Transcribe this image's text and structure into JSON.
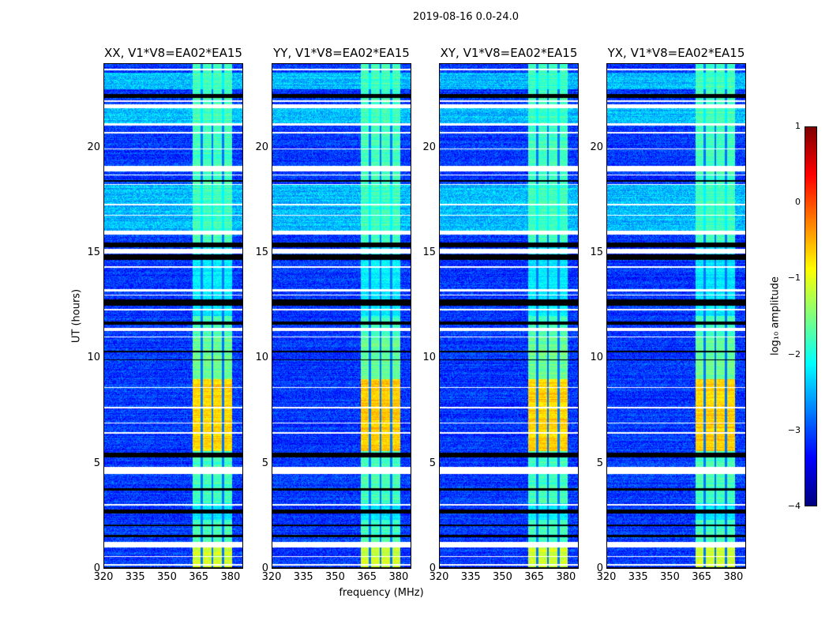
{
  "chart_data": {
    "type": "heatmap",
    "title": "2019-08-16 0.0-24.0",
    "xlabel": "frequency (MHz)",
    "ylabel": "UT (hours)",
    "xlim": [
      320,
      386
    ],
    "ylim": [
      0,
      24
    ],
    "xticks": [
      "320",
      "335",
      "350",
      "365",
      "380"
    ],
    "xtick_values": [
      320,
      335,
      350,
      365,
      380
    ],
    "yticks": [
      "0",
      "5",
      "10",
      "15",
      "20"
    ],
    "ytick_values": [
      0,
      5,
      10,
      15,
      20
    ],
    "panels": [
      {
        "title": "XX, V1*V8=EA02*EA15",
        "band_boost": 0.0
      },
      {
        "title": "YY, V1*V8=EA02*EA15",
        "band_boost": 0.1
      },
      {
        "title": "XY, V1*V8=EA02*EA15",
        "band_boost": 0.05
      },
      {
        "title": "YX, V1*V8=EA02*EA15",
        "band_boost": 0.05
      }
    ],
    "rfi_band_mhz": [
      362,
      381
    ],
    "flagged_hours_white": [
      [
        23.7,
        23.8
      ],
      [
        22.2,
        22.3
      ],
      [
        21.9,
        22.1
      ],
      [
        21.1,
        21.2
      ],
      [
        20.7,
        20.8
      ],
      [
        19.95,
        20.0
      ],
      [
        18.9,
        19.15
      ],
      [
        18.7,
        18.75
      ],
      [
        18.25,
        18.3
      ],
      [
        17.3,
        17.35
      ],
      [
        16.8,
        16.85
      ],
      [
        15.9,
        16.1
      ],
      [
        15.0,
        15.2
      ],
      [
        14.3,
        14.4
      ],
      [
        13.2,
        13.3
      ],
      [
        13.0,
        13.05
      ],
      [
        12.3,
        12.35
      ],
      [
        11.3,
        11.45
      ],
      [
        11.0,
        11.05
      ],
      [
        8.6,
        8.65
      ],
      [
        7.6,
        7.7
      ],
      [
        6.9,
        6.95
      ],
      [
        6.4,
        6.5
      ],
      [
        4.5,
        4.85
      ],
      [
        3.0,
        3.05
      ],
      [
        1.0,
        1.25
      ],
      [
        0.55,
        0.6
      ],
      [
        0.15,
        0.2
      ]
    ],
    "flagged_hours_black": [
      [
        22.4,
        22.6
      ],
      [
        18.4,
        18.5
      ],
      [
        15.3,
        15.5
      ],
      [
        14.7,
        14.95
      ],
      [
        12.5,
        12.8
      ],
      [
        11.6,
        11.75
      ],
      [
        10.3,
        10.35
      ],
      [
        9.9,
        9.95
      ],
      [
        5.3,
        5.5
      ],
      [
        3.7,
        3.8
      ],
      [
        2.6,
        2.8
      ],
      [
        2.0,
        2.1
      ],
      [
        1.5,
        1.6
      ],
      [
        0.0,
        0.05
      ]
    ],
    "colorbar": {
      "label": "log₁₀ amplitude",
      "range": [
        -4,
        1
      ],
      "ticks": [
        "−4",
        "−3",
        "−2",
        "−1",
        "0",
        "1"
      ],
      "tick_values": [
        -4,
        -3,
        -2,
        -1,
        0,
        1
      ],
      "colormap": "jet"
    }
  }
}
